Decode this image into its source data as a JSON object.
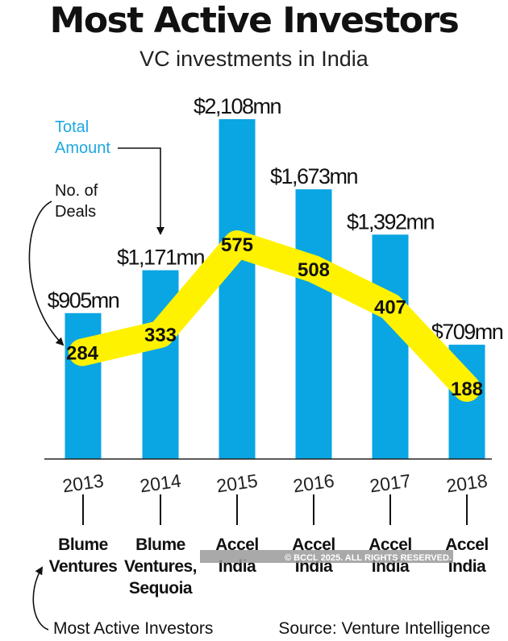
{
  "chart_data": {
    "type": "bar",
    "title": "Most Active Investors",
    "subtitle": "VC investments in India",
    "categories": [
      "2013",
      "2014",
      "2015",
      "2016",
      "2017",
      "2018"
    ],
    "series": [
      {
        "name": "Total Amount",
        "values": [
          905,
          1171,
          2108,
          1673,
          1392,
          709
        ],
        "labels": [
          "$905mn",
          "$1,171mn",
          "$2,108mn",
          "$1,673mn",
          "$1,392mn",
          "$709mn"
        ]
      },
      {
        "name": "No. of Deals",
        "values": [
          284,
          333,
          575,
          508,
          407,
          188
        ]
      }
    ],
    "investors": [
      [
        "Blume",
        "Ventures"
      ],
      [
        "Blume",
        "Ventures,",
        "Sequoia"
      ],
      [
        "Accel",
        "India"
      ],
      [
        "Accel",
        "India"
      ],
      [
        "Accel",
        "India"
      ],
      [
        "Accel",
        "India"
      ]
    ],
    "annotations": {
      "total_amount": [
        "Total",
        "Amount"
      ],
      "deals": [
        "No. of",
        "Deals"
      ],
      "investors": "Most Active Investors"
    },
    "source": "Source: Venture Intelligence",
    "watermark": "© BCCL 2025. ALL RIGHTS RESERVED.",
    "colors": {
      "bar": "#0aa5e3",
      "deals_line": "#fff200",
      "annotation_blue": "#1ea7e1",
      "text": "#111111"
    }
  }
}
